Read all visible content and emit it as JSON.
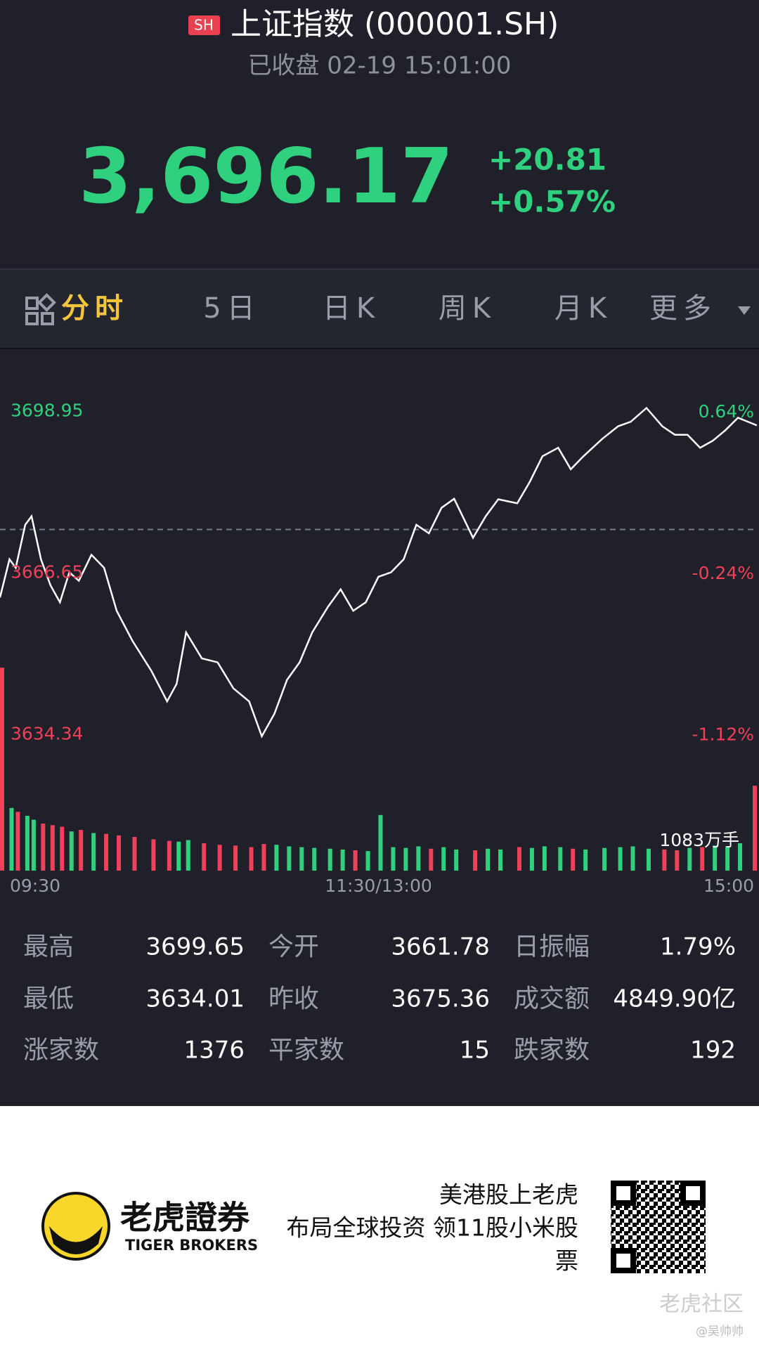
{
  "header": {
    "badge": "SH",
    "title": "上证指数 (000001.SH)",
    "subtitle": "已收盘 02-19 15:01:00",
    "price": "3,696.17",
    "change": "+20.81",
    "change_pct": "+0.57%"
  },
  "tabs": [
    "分时",
    "5日",
    "日K",
    "周K",
    "月K",
    "更多"
  ],
  "chart_data": {
    "type": "line",
    "x": [
      0,
      3,
      5,
      8,
      10,
      13,
      16,
      19,
      22,
      25,
      29,
      33,
      37,
      42,
      48,
      53,
      56,
      59,
      64,
      69,
      74,
      79,
      83,
      87,
      91,
      95,
      99,
      104,
      108,
      112,
      116,
      120,
      124,
      128,
      132,
      136,
      140,
      144,
      150,
      154,
      158,
      164,
      168,
      172,
      177,
      181,
      185,
      191,
      196,
      200,
      205,
      210,
      214,
      218,
      222,
      226,
      230,
      234,
      240
    ],
    "series": [
      {
        "color": "#ffffff",
        "values": [
          3661.78,
          3669.4,
          3667.7,
          3676.3,
          3678,
          3669.4,
          3664.2,
          3660.8,
          3666.8,
          3665.1,
          3670.3,
          3667.7,
          3659.1,
          3653.1,
          3647.1,
          3641.0,
          3644.5,
          3654.8,
          3649.6,
          3648.8,
          3643.6,
          3641.0,
          3634.01,
          3638.5,
          3645.3,
          3648.8,
          3654.8,
          3659.9,
          3663.4,
          3659.1,
          3660.8,
          3665.9,
          3666.8,
          3669.4,
          3676.3,
          3674.6,
          3679.7,
          3681.5,
          3673.7,
          3678,
          3681.4,
          3680.6,
          3684.9,
          3690.0,
          3691.7,
          3687.4,
          3690.0,
          3693.5,
          3696.0,
          3696.9,
          3699.65,
          3696.0,
          3694.3,
          3694.3,
          3691.7,
          3693.1,
          3695.2,
          3697.7,
          3696.17
        ]
      }
    ],
    "xlim": [
      0,
      240
    ],
    "xticks": [
      {
        "value": 0,
        "label": "09:30"
      },
      {
        "value": 120,
        "label": "11:30/13:00"
      },
      {
        "value": 240,
        "label": "15:00"
      }
    ],
    "ylim": [
      3631.6,
      3701.7
    ],
    "yticks": [
      3698.95,
      3666.65,
      3634.34
    ],
    "y2lim": [
      -1.19,
      0.72
    ],
    "y2ticks": [
      {
        "value": 0.64,
        "label": "0.64%"
      },
      {
        "value": -0.24,
        "label": "-0.24%"
      },
      {
        "value": -1.12,
        "label": "-1.12%"
      }
    ],
    "reference_line": 3675.36,
    "up_color": "#2fd17e",
    "down_color": "#f0405a",
    "volume": {
      "type": "bar",
      "ylim": [
        0,
        2600
      ],
      "values": [
        2590,
        800,
        750,
        700,
        650,
        600,
        580,
        560,
        500,
        520,
        480,
        470,
        450,
        430,
        400,
        380,
        370,
        390,
        350,
        330,
        320,
        300,
        340,
        330,
        310,
        300,
        290,
        280,
        270,
        260,
        250,
        710,
        300,
        290,
        310,
        280,
        300,
        270,
        260,
        280,
        270,
        300,
        290,
        310,
        300,
        280,
        270,
        290,
        300,
        310,
        280,
        270,
        260,
        290,
        300,
        320,
        310,
        350,
        1083
      ],
      "value_labels": [
        null,
        null,
        null,
        null,
        null,
        null,
        null,
        null,
        null,
        null,
        null,
        null,
        null,
        null,
        null,
        null,
        null,
        null,
        null,
        null,
        null,
        null,
        null,
        null,
        null,
        null,
        null,
        null,
        null,
        null,
        null,
        null,
        null,
        null,
        null,
        null,
        null,
        null,
        null,
        null,
        null,
        null,
        null,
        null,
        null,
        null,
        null,
        null,
        null,
        null,
        null,
        null,
        null,
        null,
        null,
        null,
        null,
        null,
        "1083万手"
      ]
    }
  },
  "stats": [
    [
      {
        "label": "最高",
        "value": 3699.65
      },
      {
        "label": "今开",
        "value": 3661.78
      },
      {
        "label": "日振幅",
        "value": "1.79%"
      }
    ],
    [
      {
        "label": "最低",
        "value": 3634.01
      },
      {
        "label": "昨收",
        "value": 3675.36
      },
      {
        "label": "成交额",
        "value": "4849.90亿"
      }
    ],
    [
      {
        "label": "涨家数",
        "value": 1376
      },
      {
        "label": "平家数",
        "value": 15
      },
      {
        "label": "跌家数",
        "value": 192
      }
    ]
  ],
  "footer": {
    "brand": "老虎證券",
    "brand_en": "TIGER BROKERS",
    "ad_lines": [
      "美港股上老虎",
      "布局全球投资 领11股小米股",
      "票"
    ],
    "watermark": "老虎社区",
    "author": "@吴帅帅"
  }
}
